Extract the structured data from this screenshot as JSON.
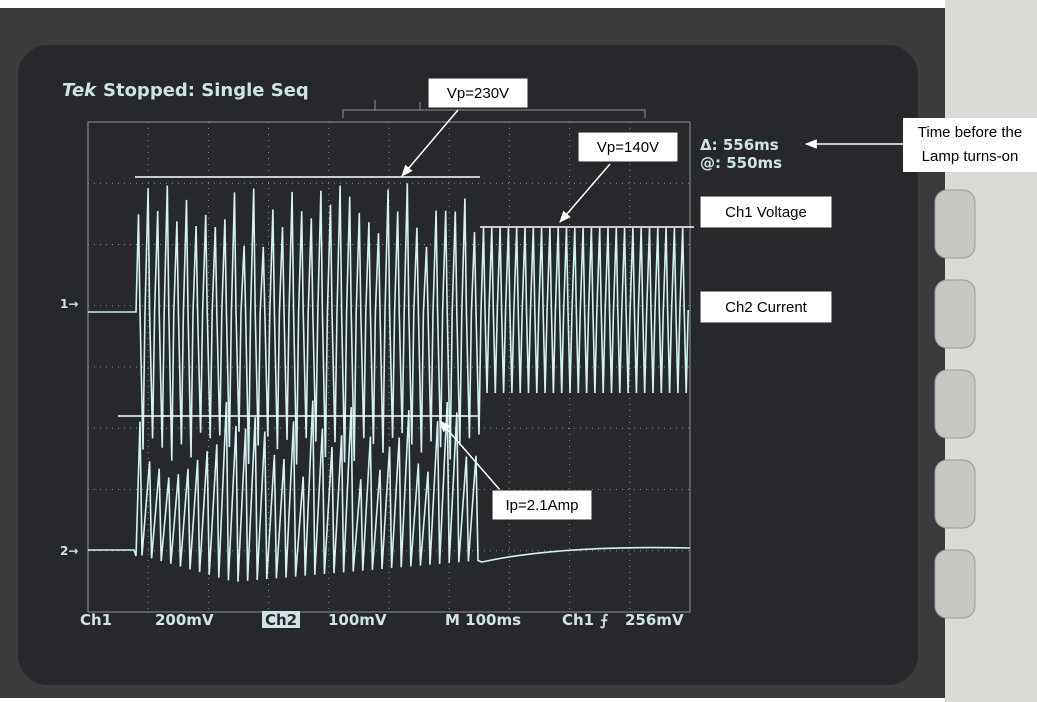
{
  "screen": {
    "status": {
      "brand": "Tek",
      "text": "Stopped: Single Seq"
    },
    "cursor_readout": {
      "delta": "Δ: 556ms",
      "at": "@: 550ms"
    },
    "channel_markers": [
      "1→",
      "2→"
    ],
    "bottom_bar": [
      "Ch1",
      "200mV",
      "Ch2",
      "100mV",
      "M 100ms",
      "Ch1",
      "⨍",
      "256mV"
    ]
  },
  "annotations": {
    "vp_high": "Vp=230V",
    "vp_low": "Vp=140V",
    "ip": "Ip=2.1Amp",
    "ch1": "Ch1 Voltage",
    "ch2": "Ch2 Current",
    "time": [
      "Time before the",
      "Lamp turns-on"
    ]
  }
}
